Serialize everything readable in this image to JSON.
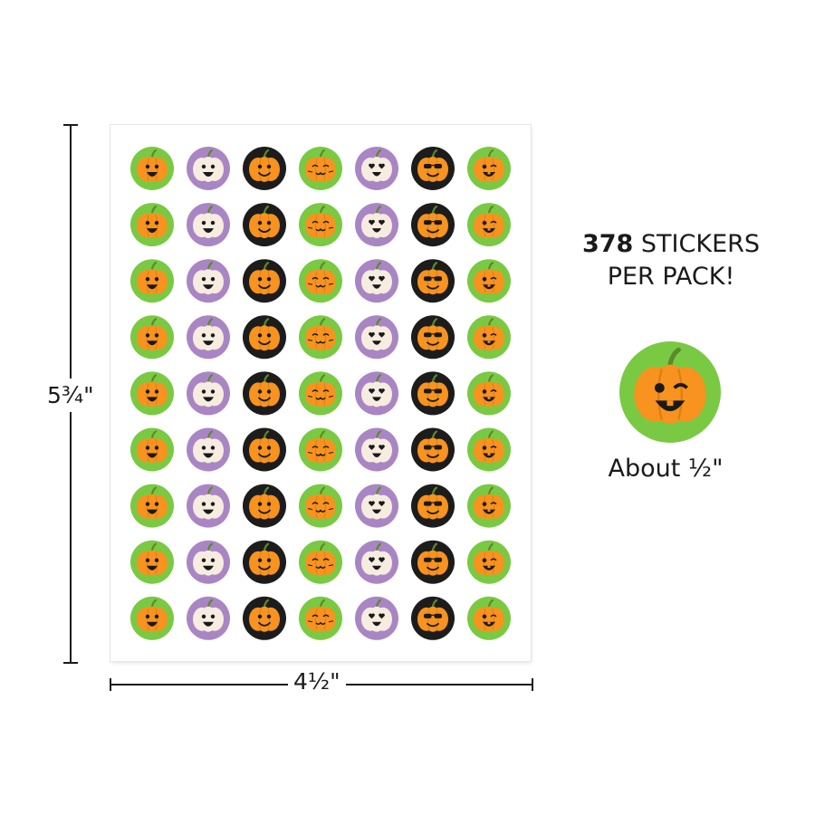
{
  "sheet": {
    "width_label": "4½\"",
    "height_label": "5¾\"",
    "columns": [
      {
        "ring": "green",
        "face": "grin"
      },
      {
        "ring": "purple",
        "face": "ghost"
      },
      {
        "ring": "black",
        "face": "smile"
      },
      {
        "ring": "green",
        "face": "cat"
      },
      {
        "ring": "purple",
        "face": "hearts"
      },
      {
        "ring": "black",
        "face": "sunglasses"
      },
      {
        "ring": "green",
        "face": "wink"
      }
    ],
    "row_count": 9
  },
  "promo": {
    "count": "378",
    "line1_rest": " STICKERS",
    "line2": "PER PACK!"
  },
  "sample": {
    "ring": "green",
    "face": "wink",
    "size_label": "About ½\""
  },
  "colors": {
    "green": "#7ac943",
    "purple": "#a986c3",
    "black": "#1c1c1c",
    "pumpkin": "#f7931e",
    "ghost": "#f6ece0",
    "stem": "#5a8a2a",
    "face": "#1a1a1a"
  },
  "icons": {
    "grin": "pumpkin-grin-icon",
    "ghost": "ghost-pumpkin-icon",
    "smile": "pumpkin-smile-icon",
    "cat": "pumpkin-cat-face-icon",
    "hearts": "ghost-pumpkin-heart-eyes-icon",
    "sunglasses": "pumpkin-sunglasses-icon",
    "wink": "pumpkin-wink-icon"
  }
}
